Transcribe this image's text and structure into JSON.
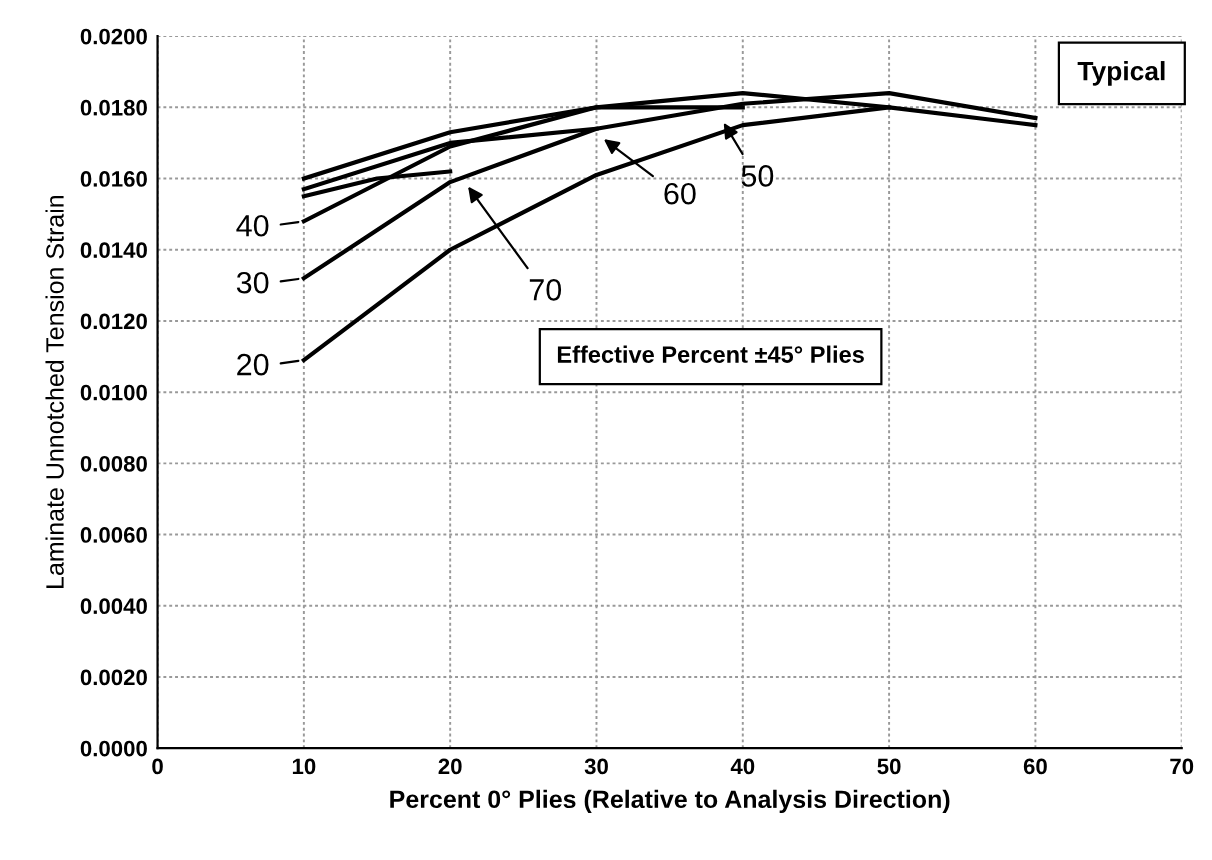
{
  "chart_data": {
    "type": "line",
    "xlabel": "Percent 0° Plies (Relative to Analysis Direction)",
    "ylabel": "Laminate Unnotched Tension Strain",
    "xlim": [
      0,
      70
    ],
    "xticks": [
      0,
      10,
      20,
      30,
      40,
      50,
      60,
      70
    ],
    "ylim": [
      0,
      0.02
    ],
    "yticks": [
      {
        "value": 0,
        "label": "0.0000"
      },
      {
        "value": 0.002,
        "label": "0.0020"
      },
      {
        "value": 0.004,
        "label": "0.0040"
      },
      {
        "value": 0.006,
        "label": "0.0060"
      },
      {
        "value": 0.008,
        "label": "0.0080"
      },
      {
        "value": 0.01,
        "label": "0.0100"
      },
      {
        "value": 0.012,
        "label": "0.0120"
      },
      {
        "value": 0.014,
        "label": "0.0140"
      },
      {
        "value": 0.016,
        "label": "0.0160"
      },
      {
        "value": 0.018,
        "label": "0.0180"
      },
      {
        "value": 0.02,
        "label": "0.0200"
      }
    ],
    "grid": true,
    "marker": "none",
    "line_style": "solid",
    "series": [
      {
        "color": "#000000",
        "x": [
          10,
          20,
          30,
          40,
          50,
          60
        ],
        "values": [
          0.0109,
          0.014,
          0.0161,
          0.0175,
          0.018,
          0.0175
        ]
      },
      {
        "color": "#000000",
        "x": [
          10,
          20,
          30,
          40,
          50,
          60
        ],
        "values": [
          0.0132,
          0.0159,
          0.0174,
          0.0181,
          0.0184,
          0.0177
        ]
      },
      {
        "color": "#000000",
        "x": [
          10,
          20,
          30,
          40,
          50
        ],
        "values": [
          0.0148,
          0.0169,
          0.018,
          0.0184,
          0.018
        ]
      },
      {
        "color": "#000000",
        "x": [
          10,
          20,
          30,
          40
        ],
        "values": [
          0.016,
          0.0173,
          0.018,
          0.018
        ]
      },
      {
        "color": "#000000",
        "x": [
          10,
          20,
          30
        ],
        "values": [
          0.0157,
          0.017,
          0.0174
        ]
      },
      {
        "color": "#000000",
        "x": [
          10,
          15,
          20
        ],
        "values": [
          0.0155,
          0.016,
          0.0162
        ]
      }
    ],
    "annotations": [
      {
        "text": "20",
        "x": 10,
        "y": 0.0109
      },
      {
        "text": "30",
        "x": 10,
        "y": 0.0132
      },
      {
        "text": "40",
        "x": 10,
        "y": 0.0148
      },
      {
        "text": "50",
        "x": 38.5,
        "y": 0.0177
      },
      {
        "text": "60",
        "x": 30.2,
        "y": 0.0172
      },
      {
        "text": "70",
        "x": 21,
        "y": 0.0159
      },
      "Typical",
      "Effective Percent ±45° Plies"
    ]
  }
}
